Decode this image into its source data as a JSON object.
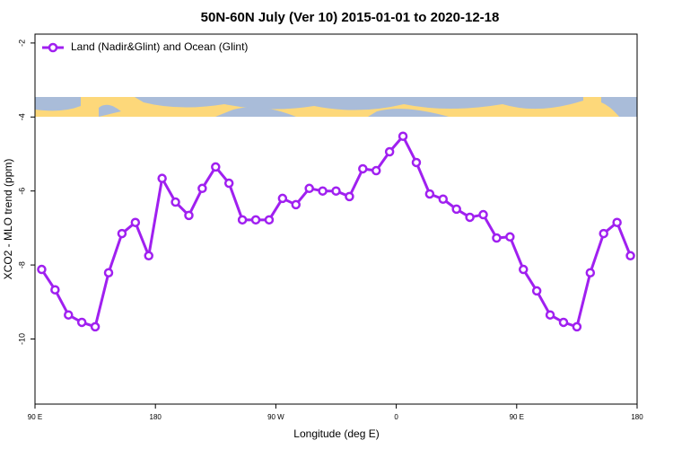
{
  "chart_data": {
    "type": "line",
    "title": "50N-60N July (Ver 10)   2015-01-01 to 2020-12-18",
    "x_label": "Longitude (deg E)",
    "y_label": "XCO2 - MLO trend (ppm)",
    "x": [
      95,
      105,
      115,
      125,
      135,
      145,
      155,
      165,
      175,
      185,
      195,
      205,
      215,
      225,
      235,
      245,
      255,
      265,
      275,
      285,
      295,
      305,
      315,
      325,
      335,
      345,
      355,
      365,
      375,
      385,
      395,
      405,
      415,
      425,
      435,
      445,
      455,
      465,
      475,
      485,
      495,
      505,
      515,
      525,
      535
    ],
    "series": [
      {
        "name": "Land (Nadir&Glint) and Ocean (Glint)",
        "color": "#a020f0",
        "values": [
          -8.12,
          -8.67,
          -9.35,
          -9.55,
          -9.67,
          -8.21,
          -7.15,
          -6.85,
          -7.75,
          -5.66,
          -6.3,
          -6.66,
          -5.93,
          -5.35,
          -5.79,
          -6.78,
          -6.78,
          -6.78,
          -6.2,
          -6.37,
          -5.93,
          -6.0,
          -6.0,
          -6.15,
          -5.4,
          -5.45,
          -4.94,
          -4.52,
          -5.23,
          -6.08,
          -6.22,
          -6.49,
          -6.71,
          -6.64,
          -7.27,
          -7.24,
          -8.12,
          -8.7,
          -9.35,
          -9.55,
          -9.67,
          -8.21,
          -7.15,
          -6.85,
          -7.75
        ]
      }
    ],
    "xlim": [
      90,
      540
    ],
    "xticks": [
      {
        "value": 90,
        "label": "90 E"
      },
      180,
      {
        "value": 270,
        "label": "90 W"
      },
      {
        "value": 360,
        "label": "0"
      },
      {
        "value": 450,
        "label": "90 E"
      },
      {
        "value": 540,
        "label": "180"
      }
    ],
    "ylim": [
      -11.76,
      -1.76
    ],
    "yticks": [
      -2,
      -4,
      -6,
      -8,
      -10
    ],
    "grid": false,
    "legend": "top-left"
  }
}
